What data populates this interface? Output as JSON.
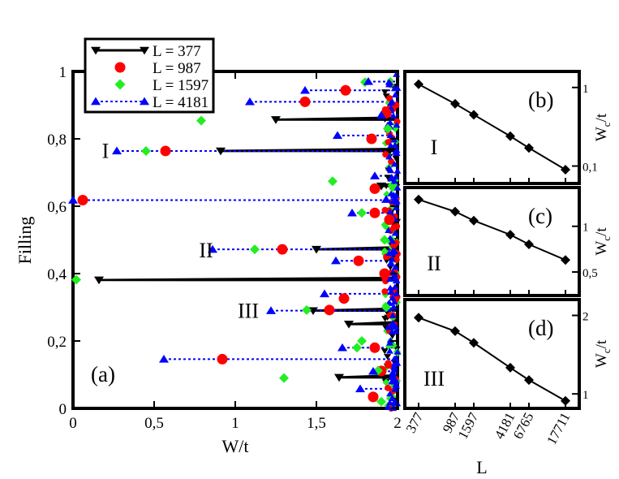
{
  "figure": {
    "panel_a": {
      "label": "(a)",
      "xlabel": "W/t",
      "ylabel": "Filling",
      "xlim": [
        0,
        2
      ],
      "ylim": [
        0,
        1
      ],
      "xticks": [
        {
          "v": 0,
          "t": "0"
        },
        {
          "v": 0.5,
          "t": "0,5"
        },
        {
          "v": 1,
          "t": "1"
        },
        {
          "v": 1.5,
          "t": "1,5"
        },
        {
          "v": 2,
          "t": "2"
        }
      ],
      "yticks": [
        {
          "v": 0,
          "t": "0"
        },
        {
          "v": 0.2,
          "t": "0,2"
        },
        {
          "v": 0.4,
          "t": "0,4"
        },
        {
          "v": 0.6,
          "t": "0,6"
        },
        {
          "v": 0.8,
          "t": "0,8"
        },
        {
          "v": 1,
          "t": "1"
        }
      ],
      "region_labels": [
        {
          "t": "I",
          "x": 0.2,
          "y": 0.765
        },
        {
          "t": "II",
          "x": 0.82,
          "y": 0.47
        },
        {
          "t": "III",
          "x": 1.08,
          "y": 0.29
        }
      ]
    },
    "legend": [
      {
        "label": "L = 377",
        "series": "L377"
      },
      {
        "label": "L = 987",
        "series": "L987"
      },
      {
        "label": "L = 1597",
        "series": "L1597"
      },
      {
        "label": "L = 4181",
        "series": "L4181"
      }
    ],
    "insets": [
      {
        "label": "(b)",
        "region": "I",
        "ylabel": "Wc/t",
        "ytick_labels": [
          "1",
          "0,1"
        ],
        "ytick_vals": [
          1,
          0.1
        ],
        "ylim": [
          0.06,
          1.6
        ]
      },
      {
        "label": "(c)",
        "region": "II",
        "ylabel": "Wc/t",
        "ytick_labels": [
          "1",
          "0,5"
        ],
        "ytick_vals": [
          1,
          0.5
        ],
        "ylim": [
          0.35,
          1.8
        ]
      },
      {
        "label": "(d)",
        "region": "III",
        "ylabel": "Wc/t",
        "ytick_labels": [
          "2",
          "1"
        ],
        "ytick_vals": [
          2,
          1
        ],
        "ylim": [
          0.88,
          2.3
        ]
      }
    ],
    "inset_xlabel": "L",
    "inset_xticks": [
      "377",
      "987",
      "1597",
      "4181",
      "6765",
      "17711"
    ]
  },
  "colors": {
    "L377": "#000000",
    "L987": "#ff0000",
    "L1597": "#22ee22",
    "L4181": "#0000ff"
  },
  "chart_data": [
    {
      "type": "scatter",
      "title": "(a)",
      "xlabel": "W/t",
      "ylabel": "Filling",
      "xlim": [
        0,
        2
      ],
      "ylim": [
        0,
        1
      ],
      "series": [
        {
          "name": "L = 377",
          "key": "L377",
          "marker": "triangle-down",
          "line": "solid",
          "points": [
            [
              0.16,
              0.381
            ],
            [
              0.91,
              0.764
            ],
            [
              1.25,
              0.857
            ],
            [
              1.48,
              0.29
            ],
            [
              1.5,
              0.472
            ],
            [
              1.64,
              0.092
            ],
            [
              1.7,
              0.25
            ],
            [
              1.9,
              0.66
            ]
          ]
        },
        {
          "name": "L = 987",
          "key": "L987",
          "marker": "circle",
          "line": "none",
          "points": [
            [
              0.06,
              0.618
            ],
            [
              0.57,
              0.764
            ],
            [
              0.92,
              0.146
            ],
            [
              1.29,
              0.472
            ],
            [
              1.43,
              0.91
            ],
            [
              1.58,
              0.292
            ],
            [
              1.67,
              0.326
            ],
            [
              1.68,
              0.944
            ],
            [
              1.76,
              0.438
            ],
            [
              1.84,
              0.8
            ],
            [
              1.85,
              0.034
            ],
            [
              1.86,
              0.18
            ],
            [
              1.86,
              0.58
            ],
            [
              1.86,
              0.652
            ],
            [
              1.9,
              0.111
            ],
            [
              1.92,
              0.4
            ],
            [
              1.93,
              0.876
            ],
            [
              1.95,
              0.56
            ]
          ]
        },
        {
          "name": "L = 1597",
          "key": "L1597",
          "marker": "diamond",
          "line": "none",
          "points": [
            [
              0.02,
              0.382
            ],
            [
              0.45,
              0.764
            ],
            [
              0.79,
              0.854
            ],
            [
              1.12,
              0.472
            ],
            [
              1.3,
              0.09
            ],
            [
              1.44,
              0.292
            ],
            [
              1.6,
              0.674
            ],
            [
              1.75,
              0.18
            ],
            [
              1.78,
              0.58
            ],
            [
              1.78,
              0.2
            ],
            [
              1.8,
              0.968
            ],
            [
              1.88,
              0.112
            ],
            [
              1.9,
              0.02
            ],
            [
              1.92,
              0.5
            ],
            [
              1.93,
              0.3
            ],
            [
              1.94,
              0.83
            ]
          ]
        },
        {
          "name": "L = 4181",
          "key": "L4181",
          "marker": "triangle-up",
          "line": "dotted",
          "points": [
            [
              0.0,
              0.618
            ],
            [
              0.27,
              0.764
            ],
            [
              0.56,
              0.146
            ],
            [
              0.86,
              0.472
            ],
            [
              1.09,
              0.91
            ],
            [
              1.22,
              0.29
            ],
            [
              1.43,
              0.944
            ],
            [
              1.55,
              0.34
            ],
            [
              1.62,
              0.438
            ],
            [
              1.63,
              0.81
            ],
            [
              1.66,
              0.18
            ],
            [
              1.72,
              0.58
            ],
            [
              1.77,
              0.058
            ],
            [
              1.82,
              0.97
            ],
            [
              1.85,
              0.11
            ],
            [
              1.86,
              0.69
            ],
            [
              1.9,
              0.87
            ],
            [
              1.93,
              0.62
            ]
          ]
        }
      ]
    },
    {
      "type": "line",
      "title": "(b) region I",
      "xlabel": "L",
      "ylabel": "Wc/t",
      "yscale": "log",
      "categories": [
        "377",
        "987",
        "1597",
        "4181",
        "6765",
        "17711"
      ],
      "values": [
        1.1,
        0.62,
        0.45,
        0.24,
        0.17,
        0.09
      ]
    },
    {
      "type": "line",
      "title": "(c) region II",
      "xlabel": "L",
      "ylabel": "Wc/t",
      "yscale": "log",
      "categories": [
        "377",
        "987",
        "1597",
        "4181",
        "6765",
        "17711"
      ],
      "values": [
        1.5,
        1.25,
        1.09,
        0.88,
        0.76,
        0.6
      ]
    },
    {
      "type": "line",
      "title": "(d) region III",
      "xlabel": "L",
      "ylabel": "Wc/t",
      "yscale": "log",
      "categories": [
        "377",
        "987",
        "1597",
        "4181",
        "6765",
        "17711"
      ],
      "values": [
        1.96,
        1.74,
        1.57,
        1.26,
        1.13,
        0.94
      ]
    }
  ]
}
